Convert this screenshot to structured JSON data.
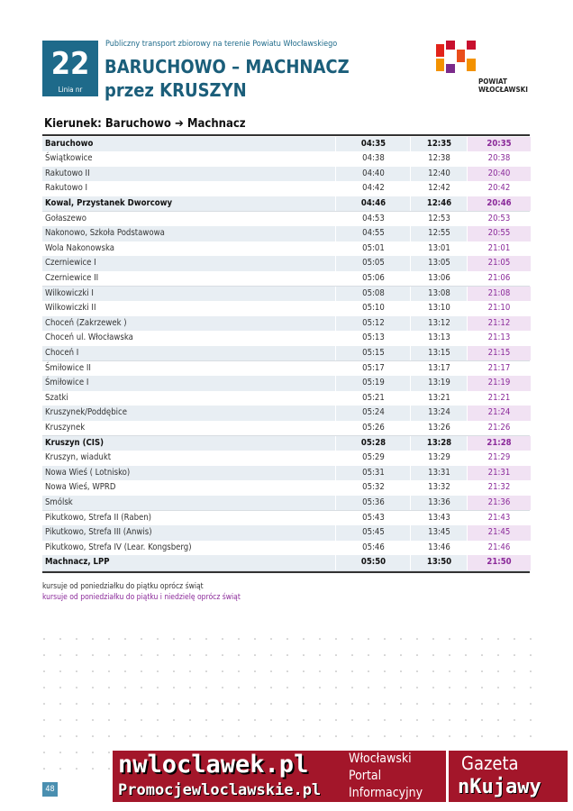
{
  "header": {
    "line_number": "22",
    "line_label": "Linia nr",
    "subtitle": "Publiczny transport zbiorowy na terenie Powiatu Włocławskiego",
    "title": "BARUCHOWO – MACHNACZ",
    "title_via": "przez KRUSZYN",
    "logo_line1": "POWIAT",
    "logo_line2": "WŁOCŁAWSKI"
  },
  "direction": "Kierunek: Baruchowo ➔ Machnacz",
  "table": {
    "rows": [
      {
        "stop": "Baruchowo",
        "times": [
          "04:35",
          "12:35",
          "20:35"
        ],
        "major": true
      },
      {
        "stop": "Świątkowice",
        "times": [
          "04:38",
          "12:38",
          "20:38"
        ]
      },
      {
        "stop": "Rakutowo II",
        "times": [
          "04:40",
          "12:40",
          "20:40"
        ]
      },
      {
        "stop": "Rakutowo I",
        "times": [
          "04:42",
          "12:42",
          "20:42"
        ]
      },
      {
        "stop": "Kowal, Przystanek Dworcowy",
        "times": [
          "04:46",
          "12:46",
          "20:46"
        ],
        "major": true
      },
      {
        "stop": "Gołaszewo",
        "times": [
          "04:53",
          "12:53",
          "20:53"
        ]
      },
      {
        "stop": "Nakonowo, Szkoła Podstawowa",
        "times": [
          "04:55",
          "12:55",
          "20:55"
        ]
      },
      {
        "stop": "Wola Nakonowska",
        "times": [
          "05:01",
          "13:01",
          "21:01"
        ]
      },
      {
        "stop": "Czerniewice I",
        "times": [
          "05:05",
          "13:05",
          "21:05"
        ]
      },
      {
        "stop": "Czerniewice II",
        "times": [
          "05:06",
          "13:06",
          "21:06"
        ]
      },
      {
        "stop": "Wilkowiczki I",
        "times": [
          "05:08",
          "13:08",
          "21:08"
        ]
      },
      {
        "stop": "Wilkowiczki II",
        "times": [
          "05:10",
          "13:10",
          "21:10"
        ]
      },
      {
        "stop": "Choceń (Zakrzewek )",
        "times": [
          "05:12",
          "13:12",
          "21:12"
        ]
      },
      {
        "stop": "Choceń ul. Włocławska",
        "times": [
          "05:13",
          "13:13",
          "21:13"
        ]
      },
      {
        "stop": "Choceń I",
        "times": [
          "05:15",
          "13:15",
          "21:15"
        ]
      },
      {
        "stop": "Śmiłowice II",
        "times": [
          "05:17",
          "13:17",
          "21:17"
        ]
      },
      {
        "stop": "Śmiłowice I",
        "times": [
          "05:19",
          "13:19",
          "21:19"
        ]
      },
      {
        "stop": "Szatki",
        "times": [
          "05:21",
          "13:21",
          "21:21"
        ]
      },
      {
        "stop": "Kruszynek/Poddębice",
        "times": [
          "05:24",
          "13:24",
          "21:24"
        ]
      },
      {
        "stop": "Kruszynek",
        "times": [
          "05:26",
          "13:26",
          "21:26"
        ]
      },
      {
        "stop": "Kruszyn (CIS)",
        "times": [
          "05:28",
          "13:28",
          "21:28"
        ],
        "major": true
      },
      {
        "stop": "Kruszyn, wiadukt",
        "times": [
          "05:29",
          "13:29",
          "21:29"
        ]
      },
      {
        "stop": "Nowa Wieś ( Lotnisko)",
        "times": [
          "05:31",
          "13:31",
          "21:31"
        ]
      },
      {
        "stop": "Nowa Wieś, WPRD",
        "times": [
          "05:32",
          "13:32",
          "21:32"
        ]
      },
      {
        "stop": "Smólsk",
        "times": [
          "05:36",
          "13:36",
          "21:36"
        ]
      },
      {
        "stop": "Pikutkowo, Strefa II (Raben)",
        "times": [
          "05:43",
          "13:43",
          "21:43"
        ]
      },
      {
        "stop": "Pikutkowo, Strefa III (Anwis)",
        "times": [
          "05:45",
          "13:45",
          "21:45"
        ]
      },
      {
        "stop": "Pikutkowo, Strefa IV (Lear. Kongsberg)",
        "times": [
          "05:46",
          "13:46",
          "21:46"
        ]
      },
      {
        "stop": "Machnacz, LPP",
        "times": [
          "05:50",
          "13:50",
          "21:50"
        ],
        "major": true
      }
    ]
  },
  "notes": [
    "kursuje od poniedziałku do piątku oprócz świąt",
    "kursuje od poniedziałku do piątku i niedzielę oprócz świąt"
  ],
  "page_number": "48",
  "watermark": {
    "site1": "nwloclawek.pl",
    "site2": "Promocjewloclawskie.pl",
    "portal1": "Włocławski",
    "portal2": "Portal",
    "portal3": "Informacyjny",
    "paper1": "Gazeta",
    "paper2": "nKujawy"
  }
}
